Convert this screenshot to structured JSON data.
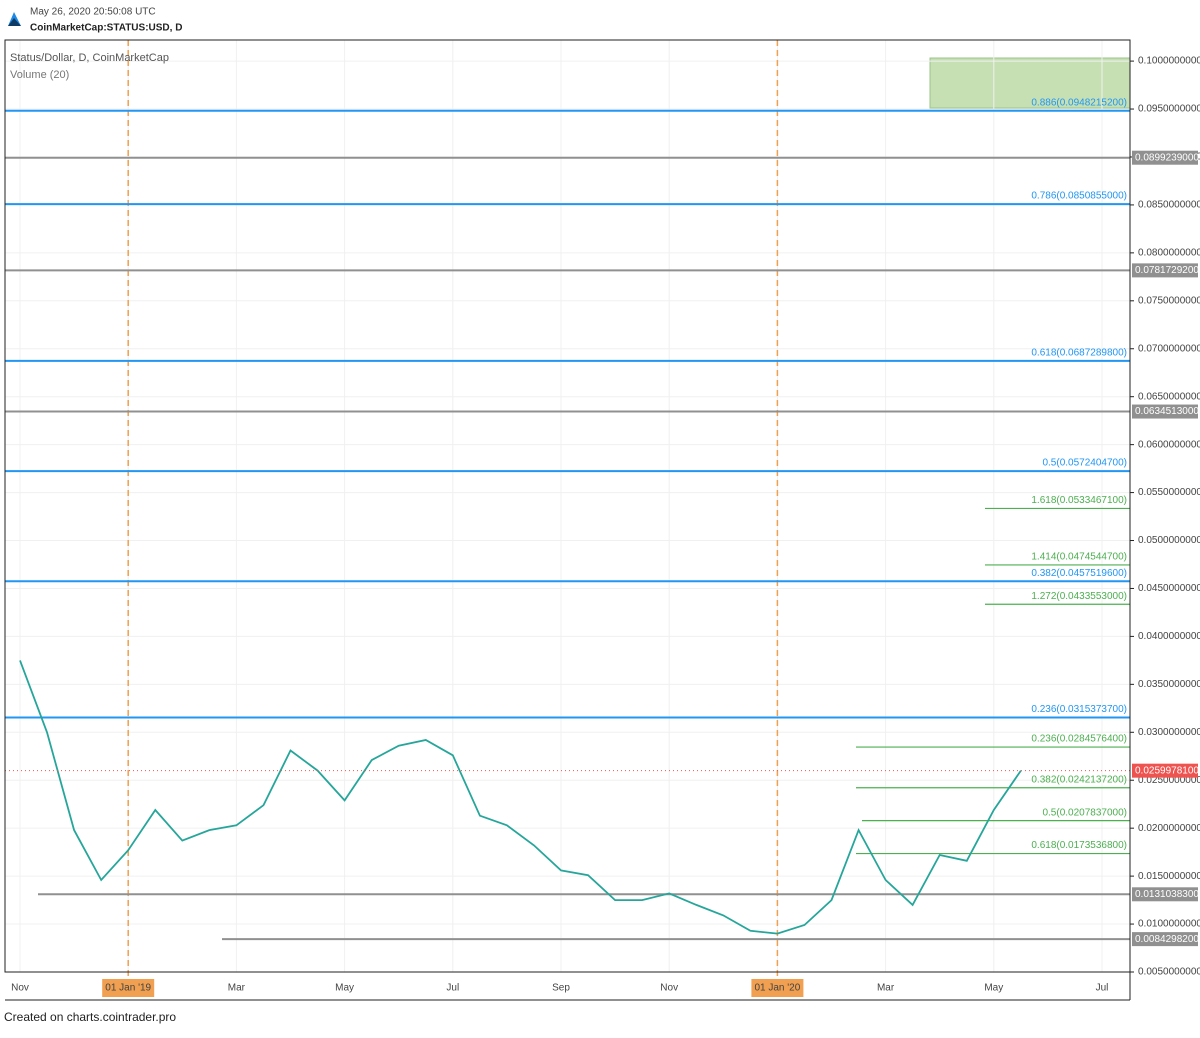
{
  "header": {
    "timestamp": "May 26, 2020 20:50:08 UTC",
    "symbol": "CoinMarketCap:STATUS:USD, D"
  },
  "chart_data": {
    "type": "line",
    "title": "Status/Dollar, D, CoinMarketCap",
    "subtitle": "Volume (20)",
    "categories": [
      "Nov",
      null,
      null,
      null,
      "01 Jan '19",
      null,
      null,
      null,
      "Mar",
      null,
      null,
      null,
      "May",
      null,
      null,
      null,
      "Jul",
      null,
      null,
      null,
      "Sep",
      null,
      null,
      null,
      "Nov",
      null,
      null,
      null,
      "01 Jan '20",
      null,
      null,
      null,
      "Mar",
      null,
      null,
      null,
      "May",
      null,
      null,
      null,
      "Jul",
      null
    ],
    "values": [
      0.0375,
      0.03,
      0.0198,
      0.0146,
      0.0177,
      0.0219,
      0.0187,
      0.0198,
      0.0203,
      0.0224,
      0.0281,
      0.026,
      0.0229,
      0.0271,
      0.0286,
      0.0292,
      0.0276,
      0.0213,
      0.0203,
      0.0182,
      0.0156,
      0.0151,
      0.0125,
      0.0125,
      0.0132,
      0.012,
      0.0109,
      0.0093,
      0.009,
      0.0099,
      0.0125,
      0.0198,
      0.0146,
      0.012,
      0.0172,
      0.0166,
      0.0219,
      0.026,
      null,
      null,
      null,
      null
    ],
    "color": "#26a69a",
    "ylim": [
      0.005,
      0.1022
    ],
    "yticks": [
      {
        "value": 0.1,
        "label": "0.1000000000"
      },
      {
        "value": 0.095,
        "label": "0.0950000000"
      },
      {
        "value": 0.09,
        "label": "0.0900000000"
      },
      {
        "value": 0.085,
        "label": "0.0850000000"
      },
      {
        "value": 0.08,
        "label": "0.0800000000"
      },
      {
        "value": 0.075,
        "label": "0.0750000000"
      },
      {
        "value": 0.07,
        "label": "0.0700000000"
      },
      {
        "value": 0.065,
        "label": "0.0650000000"
      },
      {
        "value": 0.06,
        "label": "0.0600000000"
      },
      {
        "value": 0.055,
        "label": "0.0550000000"
      },
      {
        "value": 0.05,
        "label": "0.0500000000"
      },
      {
        "value": 0.045,
        "label": "0.0450000000"
      },
      {
        "value": 0.04,
        "label": "0.0400000000"
      },
      {
        "value": 0.035,
        "label": "0.0350000000"
      },
      {
        "value": 0.03,
        "label": "0.0300000000"
      },
      {
        "value": 0.025,
        "label": "0.0250000000"
      },
      {
        "value": 0.02,
        "label": "0.0200000000"
      },
      {
        "value": 0.015,
        "label": "0.0150000000"
      },
      {
        "value": 0.01,
        "label": "0.0100000000"
      },
      {
        "value": 0.005,
        "label": "0.0050000000"
      }
    ],
    "grid": true,
    "last_price": {
      "value": 0.0259978,
      "label": "0.0259978100",
      "color": "#ef5350"
    },
    "fib_levels": {
      "color": "#2196f3",
      "levels": [
        {
          "value": 0.09482152,
          "label": "0.886(0.0948215200)"
        },
        {
          "value": 0.0850855,
          "label": "0.786(0.0850855000)"
        },
        {
          "value": 0.06872898,
          "label": "0.618(0.0687289800)"
        },
        {
          "value": 0.05724047,
          "label": "0.5(0.0572404700)"
        },
        {
          "value": 0.04575196,
          "label": "0.382(0.0457519600)"
        },
        {
          "value": 0.03153737,
          "label": "0.236(0.0315373700)"
        }
      ]
    },
    "price_levels": {
      "color": "#909090",
      "levels": [
        {
          "value": 0.0899239,
          "label": "0.0899239000"
        },
        {
          "value": 0.07817292,
          "label": "0.0781729200"
        },
        {
          "value": 0.0634513,
          "label": "0.0634513000"
        },
        {
          "value": 0.01310383,
          "label": "0.0131038300"
        },
        {
          "value": 0.00842982,
          "label": "0.0084298200"
        }
      ]
    },
    "extension_levels": {
      "color": "#4caf50",
      "levels": [
        {
          "value": 0.05334671,
          "label": "1.618(0.0533467100)"
        },
        {
          "value": 0.04745447,
          "label": "1.414(0.0474544700)"
        },
        {
          "value": 0.0433553,
          "label": "1.272(0.0433553000)"
        },
        {
          "value": 0.02845764,
          "label": "0.236(0.0284576400)"
        },
        {
          "value": 0.02421372,
          "label": "0.382(0.0242137200)"
        },
        {
          "value": 0.0207837,
          "label": "0.5(0.0207837000)"
        },
        {
          "value": 0.01735368,
          "label": "0.618(0.0173536800)"
        }
      ]
    }
  },
  "footer": "Created on charts.cointrader.pro"
}
